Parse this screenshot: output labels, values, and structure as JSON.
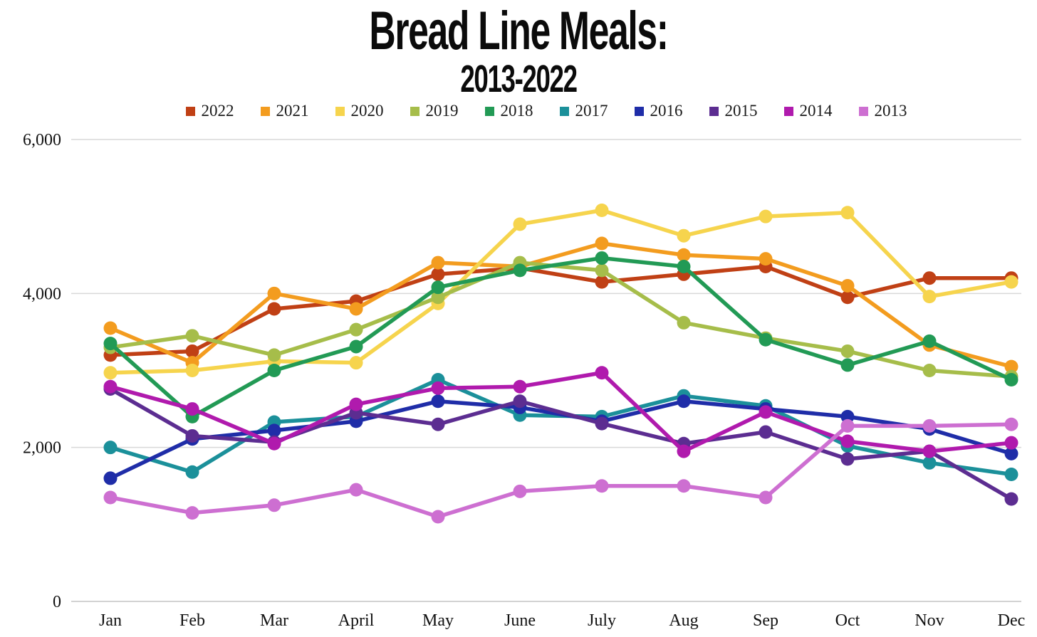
{
  "title": {
    "line1": "Bread Line Meals:",
    "line2": "2013-2022"
  },
  "chart_data": {
    "type": "line",
    "title": "Bread Line Meals: 2013-2022",
    "x": [
      "Jan",
      "Feb",
      "Mar",
      "April",
      "May",
      "June",
      "July",
      "Aug",
      "Sep",
      "Oct",
      "Nov",
      "Dec"
    ],
    "xlabel": "",
    "ylabel": "",
    "ylim": [
      0,
      6000
    ],
    "yticks": [
      0,
      2000,
      4000,
      6000
    ],
    "ytick_labels": [
      "0",
      "2,000",
      "4,000",
      "6,000"
    ],
    "grid": true,
    "legend_position": "top",
    "grid_color": "#d9d9d9",
    "axis_line_color": "#c4c4c4",
    "series": [
      {
        "name": "2022",
        "color": "#c04015",
        "values": [
          3200,
          3250,
          3800,
          3900,
          4250,
          4330,
          4150,
          4250,
          4350,
          3950,
          4200,
          4200
        ]
      },
      {
        "name": "2021",
        "color": "#f39c1f",
        "values": [
          3550,
          3100,
          4000,
          3800,
          4400,
          4350,
          4650,
          4500,
          4450,
          4100,
          3330,
          3050
        ]
      },
      {
        "name": "2020",
        "color": "#f6d44d",
        "values": [
          2970,
          3000,
          3120,
          3100,
          3870,
          4900,
          5080,
          4750,
          5000,
          5050,
          3960,
          4150
        ]
      },
      {
        "name": "2019",
        "color": "#a6bd4a",
        "values": [
          3300,
          3450,
          3200,
          3530,
          3950,
          4400,
          4300,
          3620,
          3420,
          3250,
          3000,
          2920
        ]
      },
      {
        "name": "2018",
        "color": "#229a55",
        "values": [
          3350,
          2400,
          3000,
          3310,
          4080,
          4300,
          4460,
          4350,
          3400,
          3070,
          3380,
          2880
        ]
      },
      {
        "name": "2017",
        "color": "#1b909a",
        "values": [
          2000,
          1680,
          2330,
          2400,
          2880,
          2420,
          2400,
          2670,
          2540,
          2020,
          1800,
          1650
        ]
      },
      {
        "name": "2016",
        "color": "#1f2da8",
        "values": [
          1600,
          2110,
          2220,
          2340,
          2600,
          2520,
          2340,
          2600,
          2500,
          2400,
          2240,
          1920
        ]
      },
      {
        "name": "2015",
        "color": "#5c2d91",
        "values": [
          2760,
          2150,
          2070,
          2450,
          2300,
          2600,
          2310,
          2050,
          2200,
          1850,
          1950,
          1330
        ]
      },
      {
        "name": "2014",
        "color": "#b01aad",
        "values": [
          2790,
          2500,
          2050,
          2560,
          2770,
          2790,
          2970,
          1950,
          2460,
          2080,
          1950,
          2060
        ]
      },
      {
        "name": "2013",
        "color": "#cd6fd1",
        "values": [
          1350,
          1150,
          1250,
          1450,
          1100,
          1430,
          1500,
          1500,
          1350,
          2280,
          2280,
          2300
        ]
      }
    ]
  }
}
